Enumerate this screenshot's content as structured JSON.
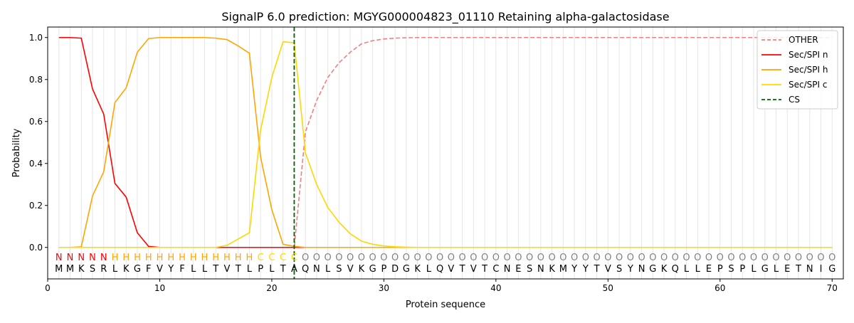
{
  "chart_data": {
    "type": "line",
    "title": "SignalP 6.0 prediction: MGYG000004823_01110 Retaining alpha-galactosidase",
    "xlabel": "Protein sequence",
    "ylabel": "Probability",
    "xlim": [
      0,
      71
    ],
    "ylim": [
      -0.15,
      1.05
    ],
    "xticks": [
      0,
      10,
      20,
      30,
      40,
      50,
      60,
      70
    ],
    "yticks": [
      0.0,
      0.2,
      0.4,
      0.6,
      0.8,
      1.0
    ],
    "legend_position": "top-right",
    "grid": "vertical lines at each residue position",
    "sequence": [
      "M",
      "M",
      "K",
      "S",
      "R",
      "L",
      "K",
      "G",
      "F",
      "V",
      "Y",
      "F",
      "L",
      "L",
      "T",
      "V",
      "T",
      "L",
      "P",
      "L",
      "T",
      "A",
      "Q",
      "N",
      "L",
      "S",
      "V",
      "K",
      "G",
      "P",
      "D",
      "G",
      "K",
      "L",
      "Q",
      "V",
      "T",
      "V",
      "T",
      "C",
      "N",
      "E",
      "S",
      "N",
      "K",
      "M",
      "Y",
      "Y",
      "T",
      "V",
      "S",
      "Y",
      "N",
      "G",
      "K",
      "Q",
      "L",
      "L",
      "E",
      "P",
      "S",
      "P",
      "L",
      "G",
      "L",
      "E",
      "T",
      "N",
      "I",
      "G"
    ],
    "labels": [
      "N",
      "N",
      "N",
      "N",
      "N",
      "H",
      "H",
      "H",
      "H",
      "H",
      "H",
      "H",
      "H",
      "H",
      "H",
      "H",
      "H",
      "H",
      "C",
      "C",
      "C",
      "C",
      "O",
      "O",
      "O",
      "O",
      "O",
      "O",
      "O",
      "O",
      "O",
      "O",
      "O",
      "O",
      "O",
      "O",
      "O",
      "O",
      "O",
      "O",
      "O",
      "O",
      "O",
      "O",
      "O",
      "O",
      "O",
      "O",
      "O",
      "O",
      "O",
      "O",
      "O",
      "O",
      "O",
      "O",
      "O",
      "O",
      "O",
      "O",
      "O",
      "O",
      "O",
      "O",
      "O",
      "O",
      "O",
      "O",
      "O",
      "O"
    ],
    "label_colors": {
      "N": "#ff0000",
      "H": "#ffa500",
      "C": "#ffd700",
      "O": "#808080"
    },
    "series": [
      {
        "name": "OTHER",
        "color": "#f08080",
        "style": "dashed",
        "values": [
          0,
          0,
          0,
          0,
          0,
          0,
          0,
          0,
          0,
          0,
          0,
          0,
          0,
          0,
          0,
          0,
          0,
          0,
          0,
          0,
          0,
          0,
          0.55,
          0.7,
          0.81,
          0.88,
          0.93,
          0.97,
          0.985,
          0.993,
          0.997,
          0.999,
          1,
          1,
          1,
          1,
          1,
          1,
          1,
          1,
          1,
          1,
          1,
          1,
          1,
          1,
          1,
          1,
          1,
          1,
          1,
          1,
          1,
          1,
          1,
          1,
          1,
          1,
          1,
          1,
          1,
          1,
          1,
          1,
          1,
          1,
          1,
          1,
          1,
          1
        ]
      },
      {
        "name": "Sec/SPI n",
        "color": "#ff0000",
        "style": "solid",
        "values": [
          1.0,
          1.0,
          0.997,
          0.755,
          0.635,
          0.305,
          0.24,
          0.07,
          0.005,
          0,
          0,
          0,
          0,
          0,
          0,
          0,
          0,
          0,
          0,
          0,
          0,
          0,
          0,
          0,
          0,
          0,
          0,
          0,
          0,
          0,
          0,
          0,
          0,
          0,
          0,
          0,
          0,
          0,
          0,
          0,
          0,
          0,
          0,
          0,
          0,
          0,
          0,
          0,
          0,
          0,
          0,
          0,
          0,
          0,
          0,
          0,
          0,
          0,
          0,
          0,
          0,
          0,
          0,
          0,
          0,
          0,
          0,
          0,
          0,
          0
        ]
      },
      {
        "name": "Sec/SPI h",
        "color": "#ffa500",
        "style": "solid",
        "values": [
          0,
          0,
          0.003,
          0.245,
          0.36,
          0.69,
          0.76,
          0.93,
          0.995,
          1.0,
          1.0,
          1.0,
          1.0,
          1.0,
          0.997,
          0.99,
          0.96,
          0.925,
          0.43,
          0.18,
          0.015,
          0.005,
          0,
          0,
          0,
          0,
          0,
          0,
          0,
          0,
          0,
          0,
          0,
          0,
          0,
          0,
          0,
          0,
          0,
          0,
          0,
          0,
          0,
          0,
          0,
          0,
          0,
          0,
          0,
          0,
          0,
          0,
          0,
          0,
          0,
          0,
          0,
          0,
          0,
          0,
          0,
          0,
          0,
          0,
          0,
          0,
          0,
          0,
          0,
          0
        ]
      },
      {
        "name": "Sec/SPI c",
        "color": "#ffd700",
        "style": "solid",
        "values": [
          0,
          0,
          0,
          0,
          0,
          0,
          0,
          0,
          0,
          0,
          0,
          0,
          0,
          0,
          0,
          0.01,
          0.04,
          0.07,
          0.56,
          0.81,
          0.98,
          0.975,
          0.45,
          0.3,
          0.19,
          0.12,
          0.065,
          0.03,
          0.015,
          0.007,
          0.003,
          0.001,
          0,
          0,
          0,
          0,
          0,
          0,
          0,
          0,
          0,
          0,
          0,
          0,
          0,
          0,
          0,
          0,
          0,
          0,
          0,
          0,
          0,
          0,
          0,
          0,
          0,
          0,
          0,
          0,
          0,
          0,
          0,
          0,
          0,
          0,
          0,
          0,
          0,
          0
        ]
      }
    ],
    "cleavage_site": {
      "name": "CS",
      "x": 22,
      "color": "#006400",
      "style": "dashed"
    }
  }
}
